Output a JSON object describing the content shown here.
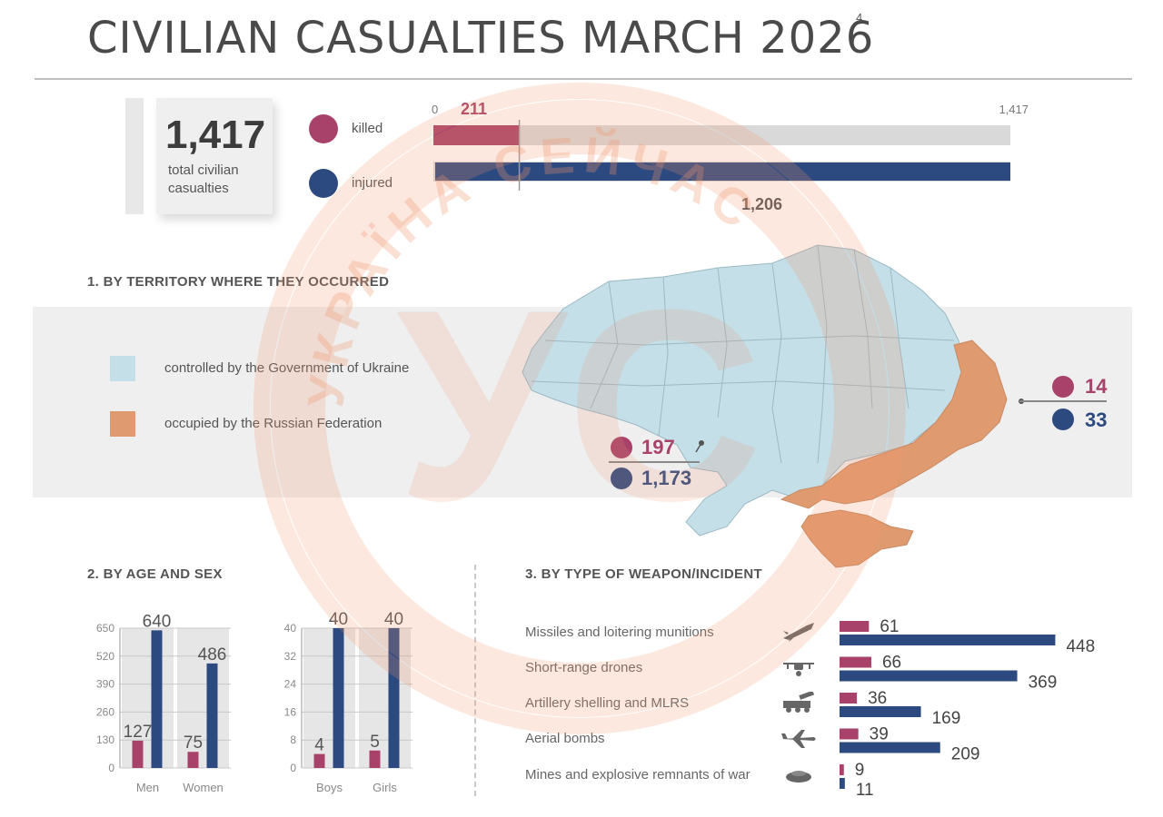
{
  "header": {
    "title": "CIVILIAN CASUALTIES MARCH 2026",
    "footnote": "4"
  },
  "total": {
    "value": "1,417",
    "label": "total civilian casualties"
  },
  "legend_top": {
    "killed": "killed",
    "injured": "injured"
  },
  "colors": {
    "killed": "#a8426a",
    "injured": "#2d4a80",
    "government": "#c4dfe8",
    "occupied": "#e09a70"
  },
  "chart_data": [
    {
      "type": "bar",
      "id": "totals",
      "orientation": "horizontal",
      "axis_min_label": "0",
      "axis_max_label": "1,417",
      "xlim": [
        0,
        1417
      ],
      "series": [
        {
          "name": "killed",
          "value": 211,
          "label": "211"
        },
        {
          "name": "injured",
          "value": 1206,
          "label": "1,206"
        }
      ]
    },
    {
      "type": "bar",
      "id": "territory",
      "title": "1. BY TERRITORY WHERE THEY OCCURRED",
      "categories": [
        "controlled by the Government of Ukraine",
        "occupied by the Russian Federation"
      ],
      "series": [
        {
          "name": "killed",
          "values": [
            197,
            14
          ],
          "labels": [
            "197",
            "14"
          ]
        },
        {
          "name": "injured",
          "values": [
            1173,
            33
          ],
          "labels": [
            "1,173",
            "33"
          ]
        }
      ]
    },
    {
      "type": "bar",
      "id": "adults",
      "title": "2. BY AGE AND SEX",
      "categories": [
        "Men",
        "Women"
      ],
      "ylim": [
        0,
        650
      ],
      "yticks": [
        "0",
        "130",
        "260",
        "390",
        "520",
        "650"
      ],
      "series": [
        {
          "name": "killed",
          "values": [
            127,
            75
          ]
        },
        {
          "name": "injured",
          "values": [
            640,
            486
          ]
        }
      ]
    },
    {
      "type": "bar",
      "id": "children",
      "categories": [
        "Boys",
        "Girls"
      ],
      "ylim": [
        0,
        40
      ],
      "yticks": [
        "0",
        "8",
        "16",
        "24",
        "32",
        "40"
      ],
      "series": [
        {
          "name": "killed",
          "values": [
            4,
            5
          ]
        },
        {
          "name": "injured",
          "values": [
            40,
            40
          ]
        }
      ]
    },
    {
      "type": "bar",
      "id": "weapons",
      "title": "3. BY TYPE OF WEAPON/INCIDENT",
      "orientation": "horizontal",
      "categories": [
        "Missiles and loitering munitions",
        "Short-range drones",
        "Artillery shelling and MLRS",
        "Aerial bombs",
        "Mines and explosive remnants of war"
      ],
      "icons": [
        "missile-icon",
        "drone-icon",
        "artillery-icon",
        "aircraft-icon",
        "landmine-icon"
      ],
      "series": [
        {
          "name": "killed",
          "values": [
            61,
            66,
            36,
            39,
            9
          ]
        },
        {
          "name": "injured",
          "values": [
            448,
            369,
            169,
            209,
            11
          ]
        }
      ]
    }
  ],
  "watermark": {
    "text": "УКРАЇНА СЕЙЧАС",
    "logo": "УС"
  }
}
